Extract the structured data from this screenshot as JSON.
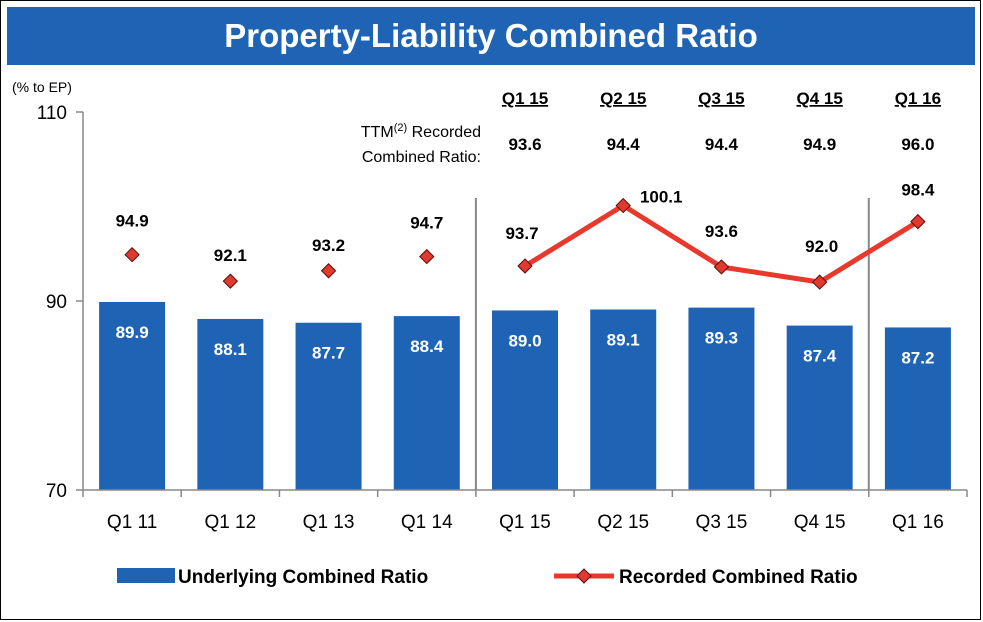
{
  "title": "Property-Liability Combined Ratio",
  "chart_data": {
    "type": "bar",
    "unit_label": "(% to EP)",
    "categories": [
      "Q1 11",
      "Q1 12",
      "Q1 13",
      "Q1 14",
      "Q1 15",
      "Q2 15",
      "Q3 15",
      "Q4 15",
      "Q1 16"
    ],
    "ylim": [
      70,
      110
    ],
    "yticks": [
      70,
      90,
      110
    ],
    "grid": false,
    "legend_position": "bottom",
    "series": [
      {
        "name": "Underlying Combined Ratio",
        "type": "bar",
        "color": "#1f63b5",
        "values": [
          89.9,
          88.1,
          87.7,
          88.4,
          89.0,
          89.1,
          89.3,
          87.4,
          87.2
        ],
        "labels": [
          "89.9",
          "88.1",
          "87.7",
          "88.4",
          "89.0",
          "89.1",
          "89.3",
          "87.4",
          "87.2"
        ]
      },
      {
        "name": "Recorded Combined Ratio",
        "type": "line",
        "color": "#e8392c",
        "marker_color": "#e03a2e",
        "values": [
          94.9,
          92.1,
          93.2,
          94.7,
          93.7,
          100.1,
          93.6,
          92.0,
          98.4
        ],
        "labels": [
          "94.9",
          "92.1",
          "93.2",
          "94.7",
          "93.7",
          "100.1",
          "93.6",
          "92.0",
          "98.4"
        ],
        "connected_from_index": 4
      }
    ],
    "separators_after_index": [
      3,
      7
    ],
    "ttm": {
      "caption_line1": "TTM",
      "caption_sup": "(2)",
      "caption_line1b": " Recorded",
      "caption_line2": "Combined Ratio:",
      "periods": [
        "Q1 15",
        "Q2 15",
        "Q3 15",
        "Q4 15",
        "Q1 16"
      ],
      "values": [
        "93.6",
        "94.4",
        "94.4",
        "94.9",
        "96.0"
      ]
    }
  }
}
